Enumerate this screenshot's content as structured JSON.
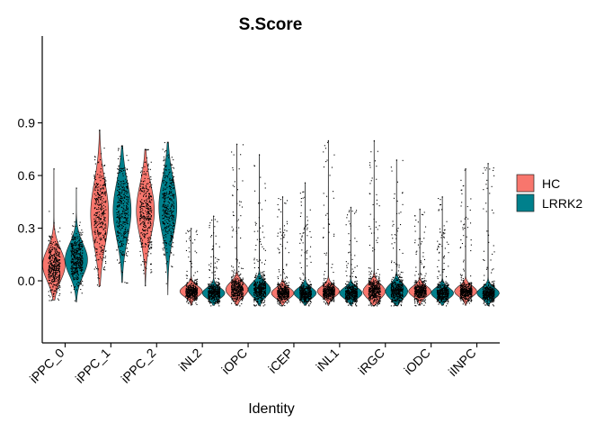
{
  "chart_data": {
    "type": "violin",
    "title": "S.Score",
    "xlabel": "Identity",
    "ylabel": "",
    "ylim": [
      -0.22,
      0.92
    ],
    "yticks": [
      0.0,
      0.3,
      0.6,
      0.9
    ],
    "ytick_labels": [
      "0.0",
      "0.3",
      "0.6",
      "0.9"
    ],
    "categories": [
      "iPPC_0",
      "iPPC_1",
      "iPPC_2",
      "iNL2",
      "iOPC",
      "iCEP",
      "iNL1",
      "iRGC",
      "iODC",
      "iINPC"
    ],
    "legend": {
      "position": "right",
      "entries": [
        {
          "name": "HC",
          "color": "#F8766D"
        },
        {
          "name": "LRRK2",
          "color": "#00808C"
        }
      ]
    },
    "series": [
      {
        "name": "HC",
        "color": "#F8766D",
        "violins": [
          {
            "min": -0.11,
            "max": 0.64,
            "center": 0.09,
            "spread": 0.09
          },
          {
            "min": -0.03,
            "max": 0.86,
            "center": 0.38,
            "spread": 0.18
          },
          {
            "min": -0.03,
            "max": 0.75,
            "center": 0.4,
            "spread": 0.15
          },
          {
            "min": -0.14,
            "max": 0.3,
            "center": -0.06,
            "spread": 0.03
          },
          {
            "min": -0.14,
            "max": 0.78,
            "center": -0.05,
            "spread": 0.04
          },
          {
            "min": -0.14,
            "max": 0.48,
            "center": -0.07,
            "spread": 0.03
          },
          {
            "min": -0.14,
            "max": 0.8,
            "center": -0.06,
            "spread": 0.03
          },
          {
            "min": -0.14,
            "max": 0.8,
            "center": -0.06,
            "spread": 0.04
          },
          {
            "min": -0.14,
            "max": 0.41,
            "center": -0.06,
            "spread": 0.03
          },
          {
            "min": -0.14,
            "max": 0.64,
            "center": -0.06,
            "spread": 0.03
          }
        ]
      },
      {
        "name": "LRRK2",
        "color": "#00808C",
        "violins": [
          {
            "min": -0.12,
            "max": 0.53,
            "center": 0.12,
            "spread": 0.09
          },
          {
            "min": -0.01,
            "max": 0.77,
            "center": 0.4,
            "spread": 0.16
          },
          {
            "min": -0.08,
            "max": 0.79,
            "center": 0.42,
            "spread": 0.16
          },
          {
            "min": -0.14,
            "max": 0.37,
            "center": -0.07,
            "spread": 0.03
          },
          {
            "min": -0.14,
            "max": 0.72,
            "center": -0.05,
            "spread": 0.04
          },
          {
            "min": -0.14,
            "max": 0.56,
            "center": -0.07,
            "spread": 0.03
          },
          {
            "min": -0.14,
            "max": 0.42,
            "center": -0.07,
            "spread": 0.03
          },
          {
            "min": -0.14,
            "max": 0.69,
            "center": -0.06,
            "spread": 0.04
          },
          {
            "min": -0.14,
            "max": 0.48,
            "center": -0.07,
            "spread": 0.03
          },
          {
            "min": -0.14,
            "max": 0.67,
            "center": -0.07,
            "spread": 0.03
          }
        ]
      }
    ]
  }
}
